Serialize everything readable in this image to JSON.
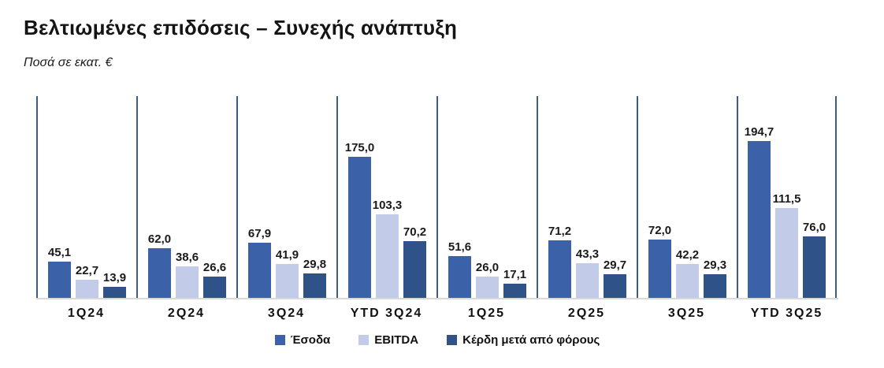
{
  "header": {
    "title": "Βελτιωμένες επιδόσεις – Συνεχής ανάπτυξη",
    "subtitle": "Ποσά σε εκατ. €"
  },
  "chart_data": {
    "type": "bar",
    "title": "Βελτιωμένες επιδόσεις – Συνεχής ανάπτυξη",
    "units_note": "Ποσά σε εκατ. €",
    "categories": [
      "1Q24",
      "2Q24",
      "3Q24",
      "YTD 3Q24",
      "1Q25",
      "2Q25",
      "3Q25",
      "YTD 3Q25"
    ],
    "series": [
      {
        "name": "Έσοδα",
        "color": "#3b62a9",
        "values": [
          45.1,
          62.0,
          67.9,
          175.0,
          51.6,
          71.2,
          72.0,
          194.7
        ]
      },
      {
        "name": "EBITDA",
        "color": "#c2cbe8",
        "values": [
          22.7,
          38.6,
          41.9,
          103.3,
          26.0,
          43.3,
          42.2,
          111.5
        ]
      },
      {
        "name": "Κέρδη μετά από φόρους",
        "color": "#2f5288",
        "values": [
          13.9,
          26.6,
          29.8,
          70.2,
          17.1,
          29.7,
          29.3,
          76.0
        ]
      }
    ],
    "xlabel": "",
    "ylabel": "",
    "ylim": [
      0,
      250
    ],
    "grid": false,
    "value_labels_shown": true,
    "decimal_separator": ",",
    "legend_position": "bottom",
    "group_separator_color": "#3d5c7e",
    "axis_line_color": "#d9d9d9",
    "label_text_color": "#1a1a1a"
  }
}
